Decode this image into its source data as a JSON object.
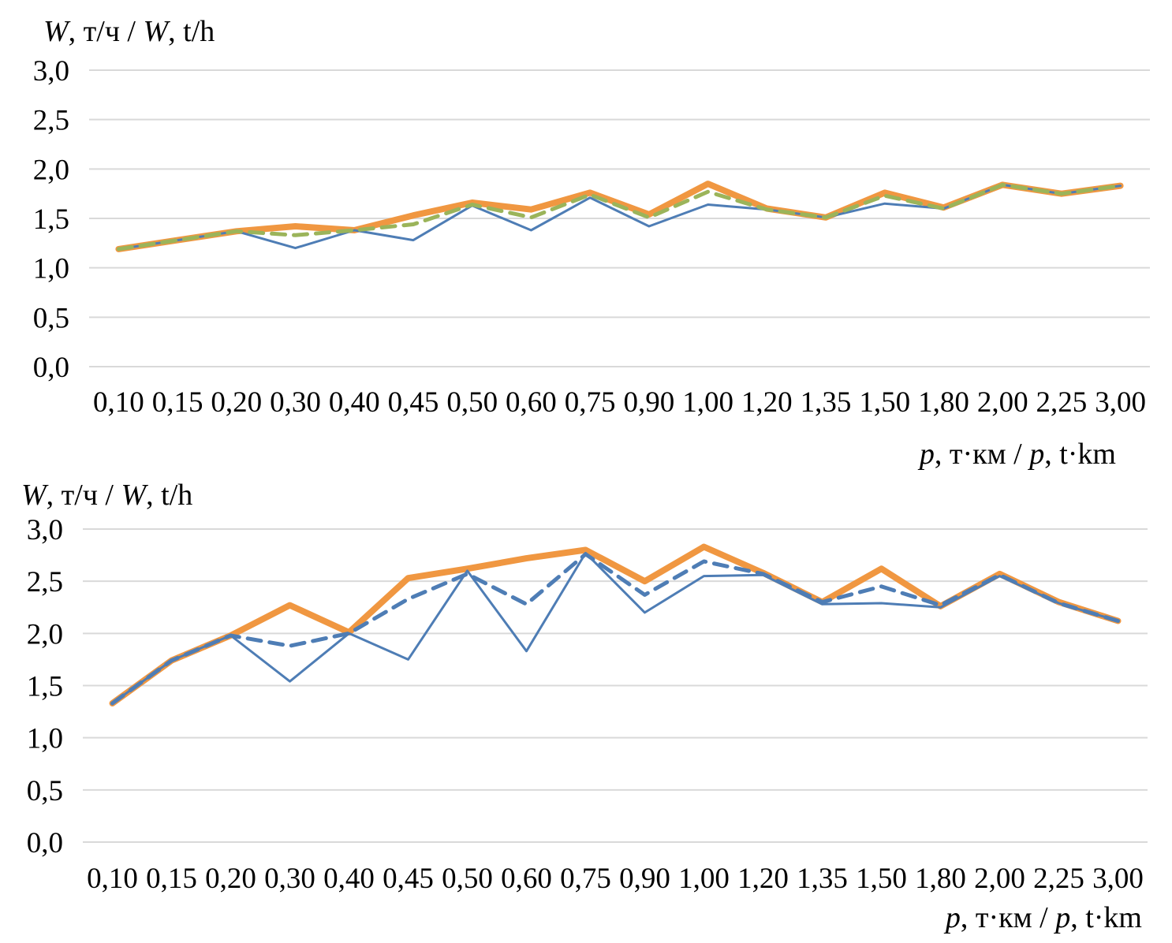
{
  "page": {
    "background": "#FFFFFF",
    "text_color": "#000000",
    "gridline_color": "#D9D9D9"
  },
  "chart_data": [
    {
      "type": "line",
      "title": "",
      "y_axis_title": "W, т/ч / W, t/h",
      "y_axis_title_parts": [
        "W",
        ", т/ч / ",
        "W",
        ", t/h"
      ],
      "x_axis_title": "p, т·км / p, t·km",
      "x_axis_title_parts": [
        "p",
        ", т·км / ",
        "p",
        ", t·km"
      ],
      "categories": [
        "0,10",
        "0,15",
        "0,20",
        "0,30",
        "0,40",
        "0,45",
        "0,50",
        "0,60",
        "0,75",
        "0,90",
        "1,00",
        "1,20",
        "1,35",
        "1,50",
        "1,80",
        "2,00",
        "2,25",
        "3,00"
      ],
      "y_ticks": [
        "3,0",
        "2,5",
        "2,0",
        "1,5",
        "1,0",
        "0,5",
        "0,0"
      ],
      "ylim": [
        0,
        3.0
      ],
      "grid": true,
      "legend": "none",
      "series": [
        {
          "name": "thick-orange-solid",
          "style": "solid",
          "width": 8,
          "color": "#F09741",
          "values": [
            1.19,
            1.28,
            1.37,
            1.42,
            1.38,
            1.53,
            1.66,
            1.59,
            1.76,
            1.54,
            1.85,
            1.6,
            1.51,
            1.76,
            1.61,
            1.84,
            1.75,
            1.83
          ]
        },
        {
          "name": "thin-blue-solid",
          "style": "solid",
          "width": 3,
          "color": "#4E7DB5",
          "values": [
            1.19,
            1.28,
            1.37,
            1.2,
            1.38,
            1.28,
            1.63,
            1.38,
            1.71,
            1.42,
            1.64,
            1.59,
            1.51,
            1.65,
            1.6,
            1.84,
            1.75,
            1.83
          ]
        },
        {
          "name": "green-dashed",
          "style": "dashed",
          "width": 5,
          "color": "#9BB45A",
          "values": [
            1.19,
            1.28,
            1.37,
            1.33,
            1.38,
            1.44,
            1.64,
            1.51,
            1.74,
            1.51,
            1.77,
            1.59,
            1.51,
            1.73,
            1.6,
            1.84,
            1.75,
            1.83
          ]
        }
      ]
    },
    {
      "type": "line",
      "title": "",
      "y_axis_title": "W, т/ч / W, t/h",
      "y_axis_title_parts": [
        "W",
        ", т/ч / ",
        "W",
        ", t/h"
      ],
      "x_axis_title": "p, т·км / p, t·km",
      "x_axis_title_parts": [
        "p",
        ", т·км / ",
        "p",
        ", t·km"
      ],
      "categories": [
        "0,10",
        "0,15",
        "0,20",
        "0,30",
        "0,40",
        "0,45",
        "0,50",
        "0,60",
        "0,75",
        "0,90",
        "1,00",
        "1,20",
        "1,35",
        "1,50",
        "1,80",
        "2,00",
        "2,25",
        "3,00"
      ],
      "y_ticks": [
        "3,0",
        "2,5",
        "2,0",
        "1,5",
        "1,0",
        "0,5",
        "0,0"
      ],
      "ylim": [
        0,
        3.0
      ],
      "grid": true,
      "legend": "none",
      "series": [
        {
          "name": "thick-orange-solid",
          "style": "solid",
          "width": 8,
          "color": "#F09741",
          "values": [
            1.33,
            1.74,
            1.98,
            2.27,
            2.01,
            2.53,
            2.62,
            2.72,
            2.8,
            2.5,
            2.83,
            2.58,
            2.3,
            2.62,
            2.26,
            2.57,
            2.3,
            2.12
          ]
        },
        {
          "name": "thin-blue-solid",
          "style": "solid",
          "width": 3,
          "color": "#4E7DB5",
          "values": [
            1.33,
            1.74,
            1.98,
            1.54,
            2.0,
            1.75,
            2.6,
            1.83,
            2.77,
            2.2,
            2.55,
            2.56,
            2.28,
            2.29,
            2.25,
            2.55,
            2.29,
            2.12
          ]
        },
        {
          "name": "blue-dashed",
          "style": "dashed",
          "width": 5,
          "color": "#4E7DB5",
          "values": [
            1.33,
            1.74,
            1.98,
            1.88,
            2.0,
            2.33,
            2.57,
            2.28,
            2.76,
            2.37,
            2.69,
            2.57,
            2.3,
            2.45,
            2.27,
            2.56,
            2.29,
            2.12
          ]
        }
      ]
    }
  ]
}
